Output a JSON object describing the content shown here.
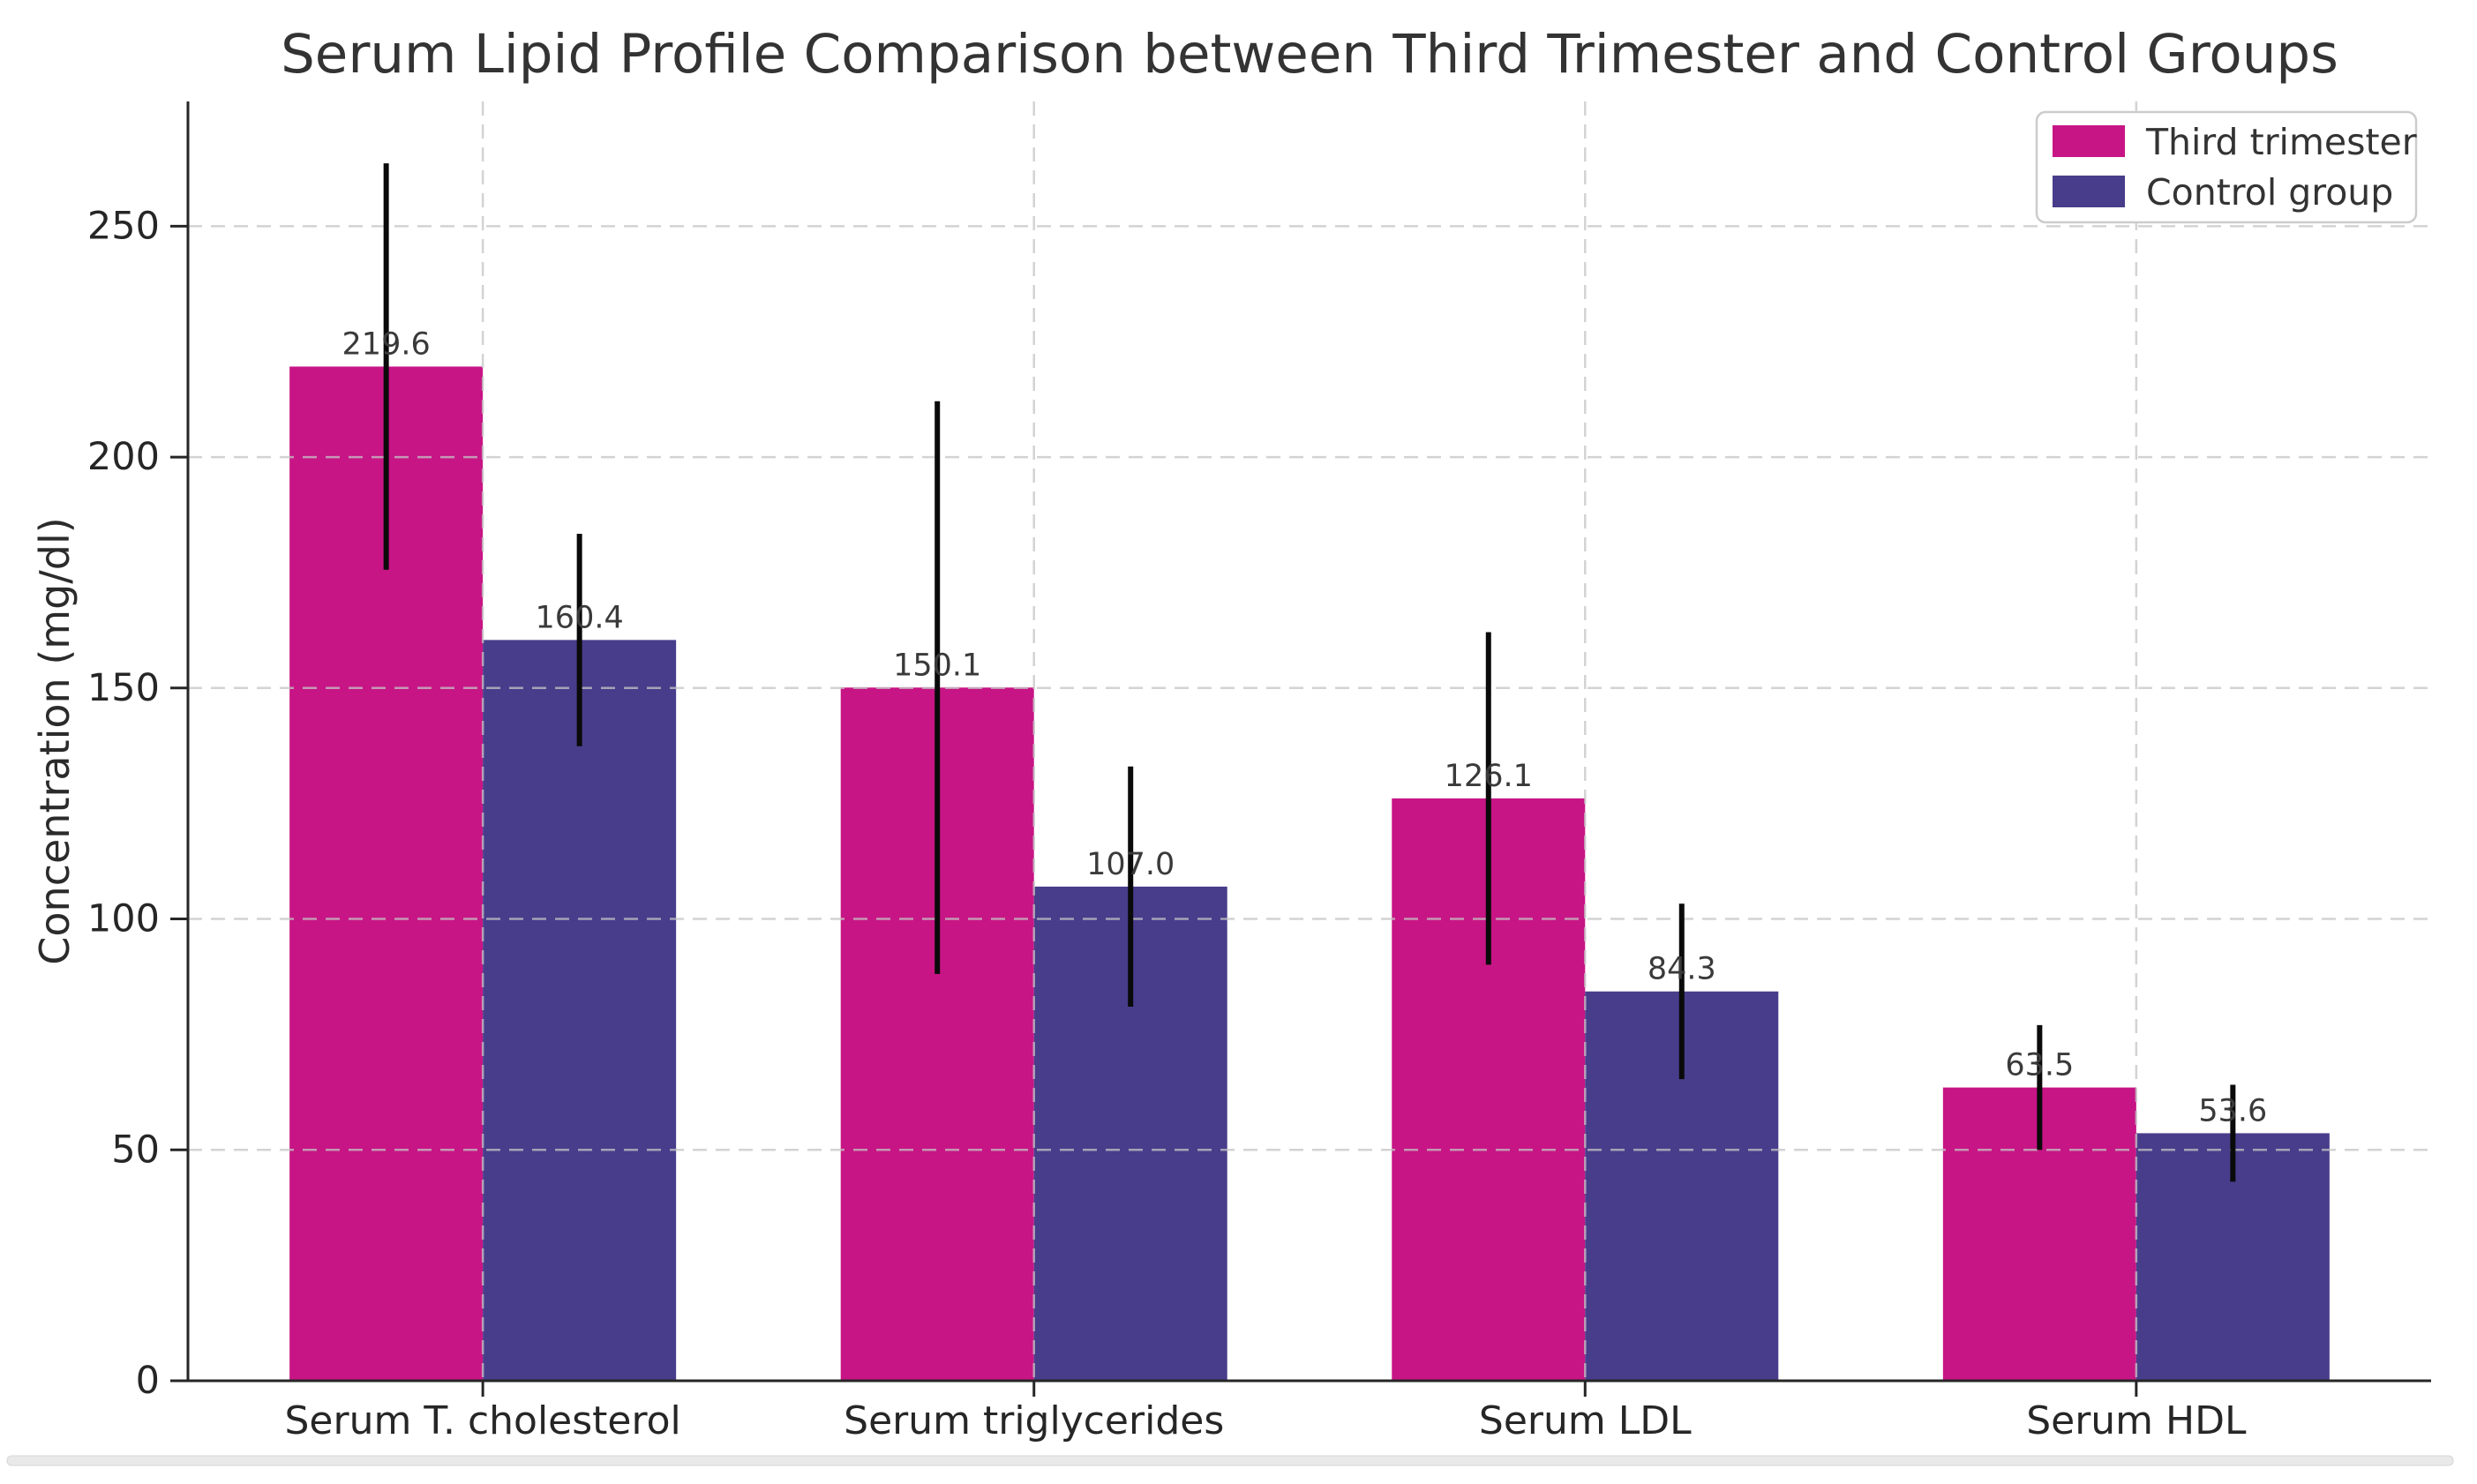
{
  "figure": {
    "title": "Serum Lipid Profile Comparison between Third Trimester and Control Groups"
  },
  "chart_data": {
    "type": "bar",
    "title": "Serum Lipid Profile Comparison between Third Trimester and Control Groups",
    "xlabel": "",
    "ylabel": "Concentration (mg/dl)",
    "categories": [
      "Serum T. cholesterol",
      "Serum triglycerides",
      "Serum LDL",
      "Serum HDL"
    ],
    "series": [
      {
        "name": "Third trimester",
        "color": "#C71585",
        "values": [
          219.6,
          150.1,
          126.1,
          63.5
        ],
        "errors": [
          44.0,
          62.0,
          36.0,
          13.5
        ],
        "value_labels": [
          "219.6",
          "150.1",
          "126.1",
          "63.5"
        ]
      },
      {
        "name": "Control group",
        "color": "#483D8B",
        "values": [
          160.4,
          107.0,
          84.3,
          53.6
        ],
        "errors": [
          23.0,
          26.0,
          19.0,
          10.5
        ],
        "value_labels": [
          "160.4",
          "107.0",
          "84.3",
          "53.6"
        ]
      }
    ],
    "yticks": [
      0,
      50,
      100,
      150,
      200,
      250
    ],
    "ylim": [
      0,
      277
    ],
    "grid": {
      "visible": true,
      "style": "dashed",
      "axis": "both"
    },
    "legend": {
      "position": "upper right",
      "entries": [
        "Third trimester",
        "Control group"
      ]
    },
    "error_bars": {
      "color": "#000000",
      "capsize": 0
    }
  }
}
